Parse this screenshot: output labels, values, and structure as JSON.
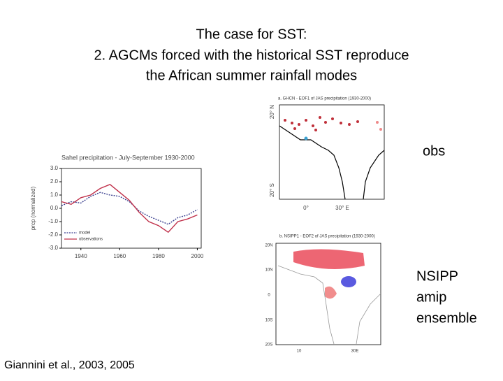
{
  "title": [
    "The case for SST:",
    "2. AGCMs forced with the historical SST reproduce",
    "the African summer rainfall modes"
  ],
  "obs_label": "obs",
  "nsipp_label": [
    "NSIPP",
    "amip",
    "ensemble"
  ],
  "citation": "Giannini et al., 2003, 2005",
  "map_obs": {
    "title": "a. GHCN - EOF1 of JAS precipitation (1930-2000)",
    "lat_labels": [
      "20° N",
      "20° S"
    ],
    "lon_labels": [
      "0°",
      "30° E"
    ]
  },
  "map_model": {
    "title": "b. NSIPP1 - EOF2 of JAS precipitation (1930-2000)",
    "lat_labels": [
      "20N",
      "10N",
      "0",
      "10S",
      "20S"
    ],
    "lon_labels": [
      "10",
      "30E"
    ]
  },
  "chart_data": {
    "type": "line",
    "title": "Sahel precipitation - July-September 1930-2000",
    "y_label": "prcp (normalized)",
    "x": [
      1930,
      1935,
      1940,
      1945,
      1950,
      1955,
      1960,
      1965,
      1970,
      1975,
      1980,
      1985,
      1990,
      1995,
      2000
    ],
    "series": [
      {
        "name": "model",
        "color": "#3a3f8f",
        "values": [
          0.2,
          0.5,
          0.4,
          0.9,
          1.2,
          1.0,
          0.9,
          0.5,
          -0.2,
          -0.6,
          -0.9,
          -1.2,
          -0.7,
          -0.5,
          -0.1
        ]
      },
      {
        "name": "observations",
        "color": "#c0304a",
        "values": [
          0.5,
          0.3,
          0.8,
          1.0,
          1.5,
          1.8,
          1.2,
          0.6,
          -0.3,
          -1.0,
          -1.3,
          -1.8,
          -1.0,
          -0.8,
          -0.5
        ]
      }
    ],
    "xlim": [
      1930,
      2002
    ],
    "xticks": [
      1940,
      1960,
      1980,
      2000
    ],
    "ylim": [
      -3,
      3
    ],
    "yticks": [
      {
        "value": 3,
        "label": "3.0"
      },
      {
        "value": 2,
        "label": "2.0"
      },
      {
        "value": 1,
        "label": "1.0"
      },
      {
        "value": 0,
        "label": "0.0"
      },
      {
        "value": -1,
        "label": "-1.0"
      },
      {
        "value": -2,
        "label": "-2.0"
      },
      {
        "value": -3,
        "label": "-3.0"
      }
    ]
  }
}
